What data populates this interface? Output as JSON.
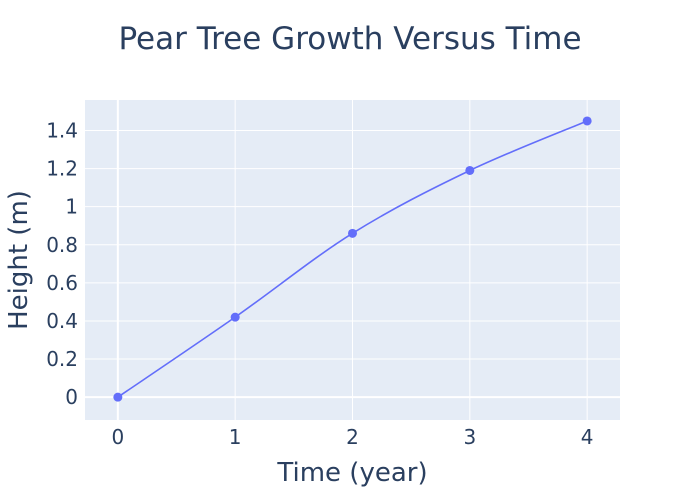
{
  "chart_data": {
    "type": "line",
    "title": "Pear Tree Growth Versus Time",
    "xlabel": "Time (year)",
    "ylabel": "Height (m)",
    "x": [
      0,
      1,
      2,
      3,
      4
    ],
    "series": [
      {
        "values": [
          0.0,
          0.42,
          0.86,
          1.19,
          1.45
        ]
      }
    ],
    "xlim": [
      -0.28,
      4.28
    ],
    "ylim": [
      -0.12,
      1.56
    ],
    "x_ticks": [
      0,
      1,
      2,
      3,
      4
    ],
    "x_tick_labels": [
      "0",
      "1",
      "2",
      "3",
      "4"
    ],
    "y_ticks": [
      0,
      0.2,
      0.4,
      0.6,
      0.8,
      1.0,
      1.2,
      1.4
    ],
    "y_tick_labels": [
      "0",
      "0.2",
      "0.4",
      "0.6",
      "0.8",
      "1",
      "1.2",
      "1.4"
    ],
    "grid": true,
    "line_shape": "spline",
    "markers": true,
    "colors": {
      "series": "#636efa",
      "plot_background": "#e5ecf6",
      "grid": "#ffffff",
      "text": "#2a3f5f"
    }
  }
}
